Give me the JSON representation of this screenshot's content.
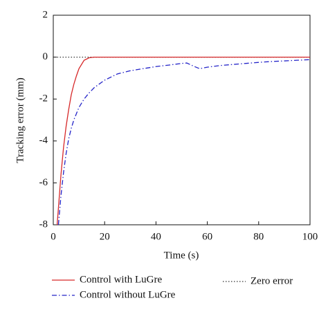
{
  "chart_data": {
    "type": "line",
    "xlabel": "Time (s)",
    "ylabel": "Tracking error (mm)",
    "x": [
      1.5,
      2,
      3,
      4,
      5,
      6,
      7,
      8,
      9,
      10,
      12,
      14,
      16,
      20,
      25,
      30,
      35,
      40,
      45,
      50,
      52,
      55,
      57,
      60,
      65,
      70,
      75,
      80,
      85,
      90,
      95,
      100
    ],
    "series": [
      {
        "name": "Control with LuGre",
        "color": "#d62728",
        "style": "solid",
        "values": [
          -8,
          -7.2,
          -5.6,
          -4.3,
          -3.3,
          -2.5,
          -1.8,
          -1.3,
          -0.9,
          -0.55,
          -0.15,
          -0.03,
          0,
          0,
          0,
          0,
          0,
          0,
          0,
          0,
          0,
          0,
          0,
          0,
          0,
          0,
          0,
          0,
          0,
          0,
          0,
          0
        ]
      },
      {
        "name": "Control without LuGre",
        "color": "#2323c8",
        "style": "dashdot",
        "values": [
          null,
          -8,
          -6.6,
          -5.5,
          -4.6,
          -3.9,
          -3.4,
          -3.0,
          -2.7,
          -2.4,
          -2.0,
          -1.7,
          -1.45,
          -1.1,
          -0.8,
          -0.65,
          -0.55,
          -0.45,
          -0.38,
          -0.3,
          -0.28,
          -0.45,
          -0.55,
          -0.48,
          -0.4,
          -0.35,
          -0.3,
          -0.25,
          -0.21,
          -0.18,
          -0.15,
          -0.12
        ]
      },
      {
        "name": "Zero error",
        "color": "#333333",
        "style": "dotted",
        "values": [
          0,
          0,
          0,
          0,
          0,
          0,
          0,
          0,
          0,
          0,
          0,
          0,
          0,
          0,
          0,
          0,
          0,
          0,
          0,
          0,
          0,
          0,
          0,
          0,
          0,
          0,
          0,
          0,
          0,
          0,
          0,
          0
        ]
      }
    ],
    "xlim": [
      0,
      100
    ],
    "xticks": [
      0,
      20,
      40,
      60,
      80,
      100
    ],
    "ylim": [
      -8,
      2
    ],
    "yticks": [
      -8,
      -6,
      -4,
      -2,
      0,
      2
    ]
  }
}
